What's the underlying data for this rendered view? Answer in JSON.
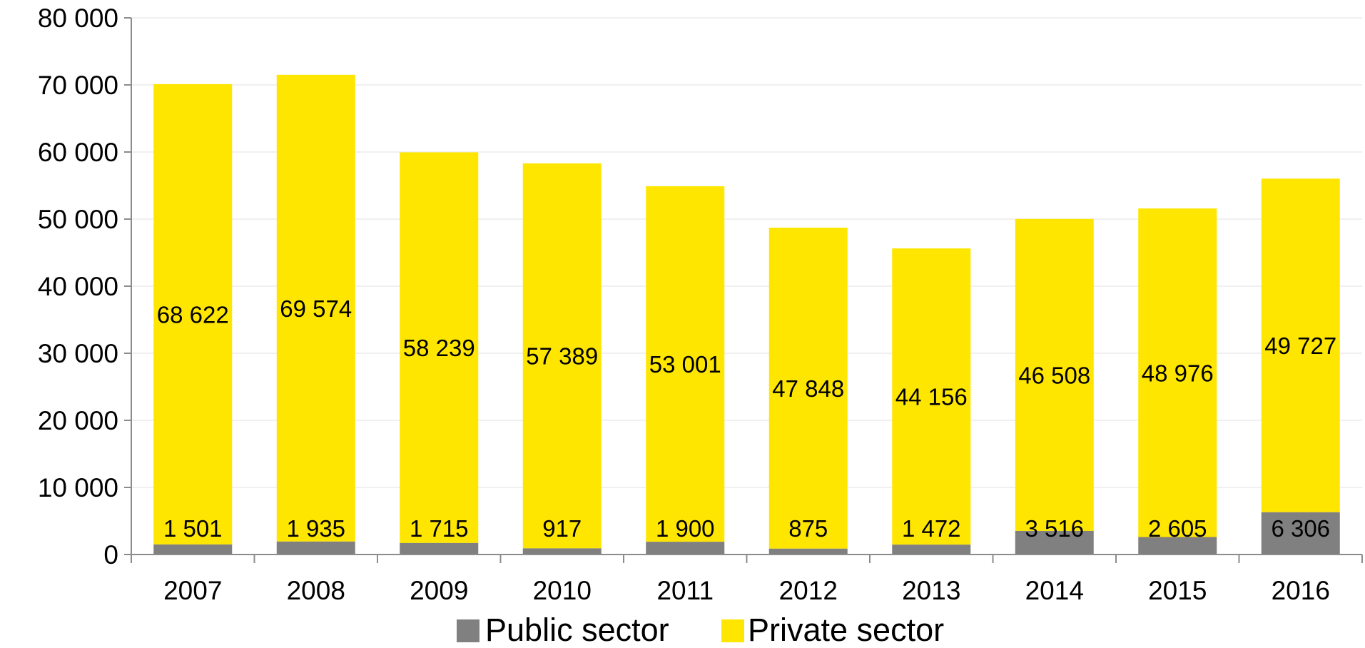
{
  "chart_data": {
    "type": "bar",
    "stacked": true,
    "categories": [
      "2007",
      "2008",
      "2009",
      "2010",
      "2011",
      "2012",
      "2013",
      "2014",
      "2015",
      "2016"
    ],
    "series": [
      {
        "name": "Public sector",
        "color": "#808080",
        "values": [
          1501,
          1935,
          1715,
          917,
          1900,
          875,
          1472,
          3516,
          2605,
          6306
        ],
        "labels": [
          "1 501",
          "1 935",
          "1 715",
          "917",
          "1 900",
          "875",
          "1 472",
          "3 516",
          "2 605",
          "6 306"
        ]
      },
      {
        "name": "Private sector",
        "color": "#FFE600",
        "values": [
          68622,
          69574,
          58239,
          57389,
          53001,
          47848,
          44156,
          46508,
          48976,
          49727
        ],
        "labels": [
          "68 622",
          "69 574",
          "58 239",
          "57 389",
          "53 001",
          "47 848",
          "44 156",
          "46 508",
          "48 976",
          "49 727"
        ]
      }
    ],
    "ylim": [
      0,
      80000
    ],
    "yticks": [
      0,
      10000,
      20000,
      30000,
      40000,
      50000,
      60000,
      70000,
      80000
    ],
    "ytick_labels": [
      "0",
      "10 000",
      "20 000",
      "30 000",
      "40 000",
      "50 000",
      "60 000",
      "70 000",
      "80 000"
    ],
    "grid": true,
    "legend_position": "bottom",
    "title": "",
    "xlabel": "",
    "ylabel": ""
  }
}
